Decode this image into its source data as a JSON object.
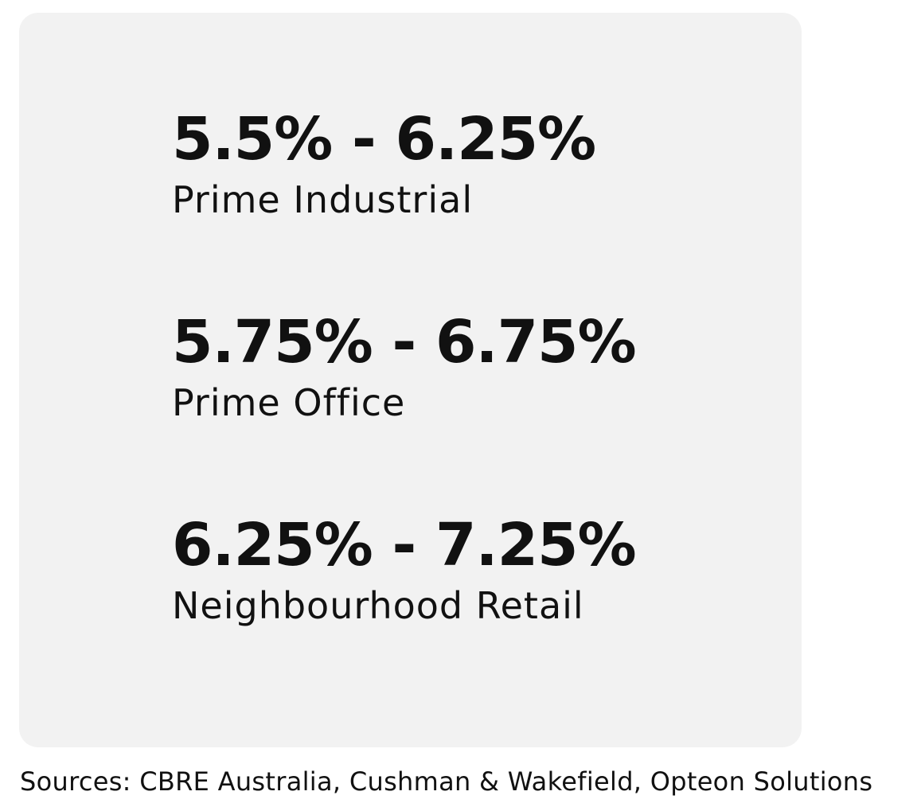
{
  "stats": [
    {
      "value": "5.5% - 6.25%",
      "label": "Prime Industrial"
    },
    {
      "value": "5.75% - 6.75%",
      "label": "Prime Office"
    },
    {
      "value": "6.25% - 7.25%",
      "label": "Neighbourhood Retail"
    }
  ],
  "footer": "Sources: CBRE Australia, Cushman & Wakefield, Opteon Solutions"
}
